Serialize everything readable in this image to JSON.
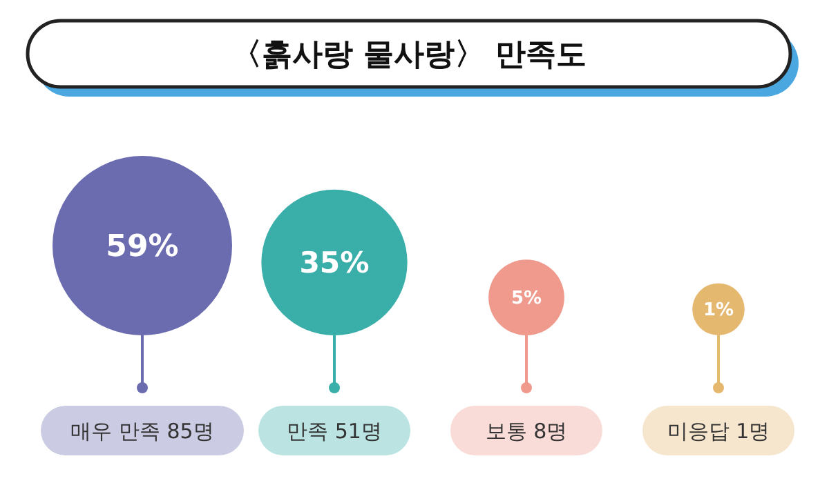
{
  "chart_data": {
    "type": "other",
    "title": "〈흙사랑 물사랑〉 만족도",
    "categories": [
      "매우 만족 85명",
      "만족 51명",
      "보통 8명",
      "미응답 1명"
    ],
    "values": [
      59,
      35,
      5,
      1
    ],
    "value_labels": [
      "59%",
      "35%",
      "5%",
      "1%"
    ],
    "colors": [
      "#6b6bb0",
      "#3aaea9",
      "#ef9a8c",
      "#e5b870"
    ]
  }
}
